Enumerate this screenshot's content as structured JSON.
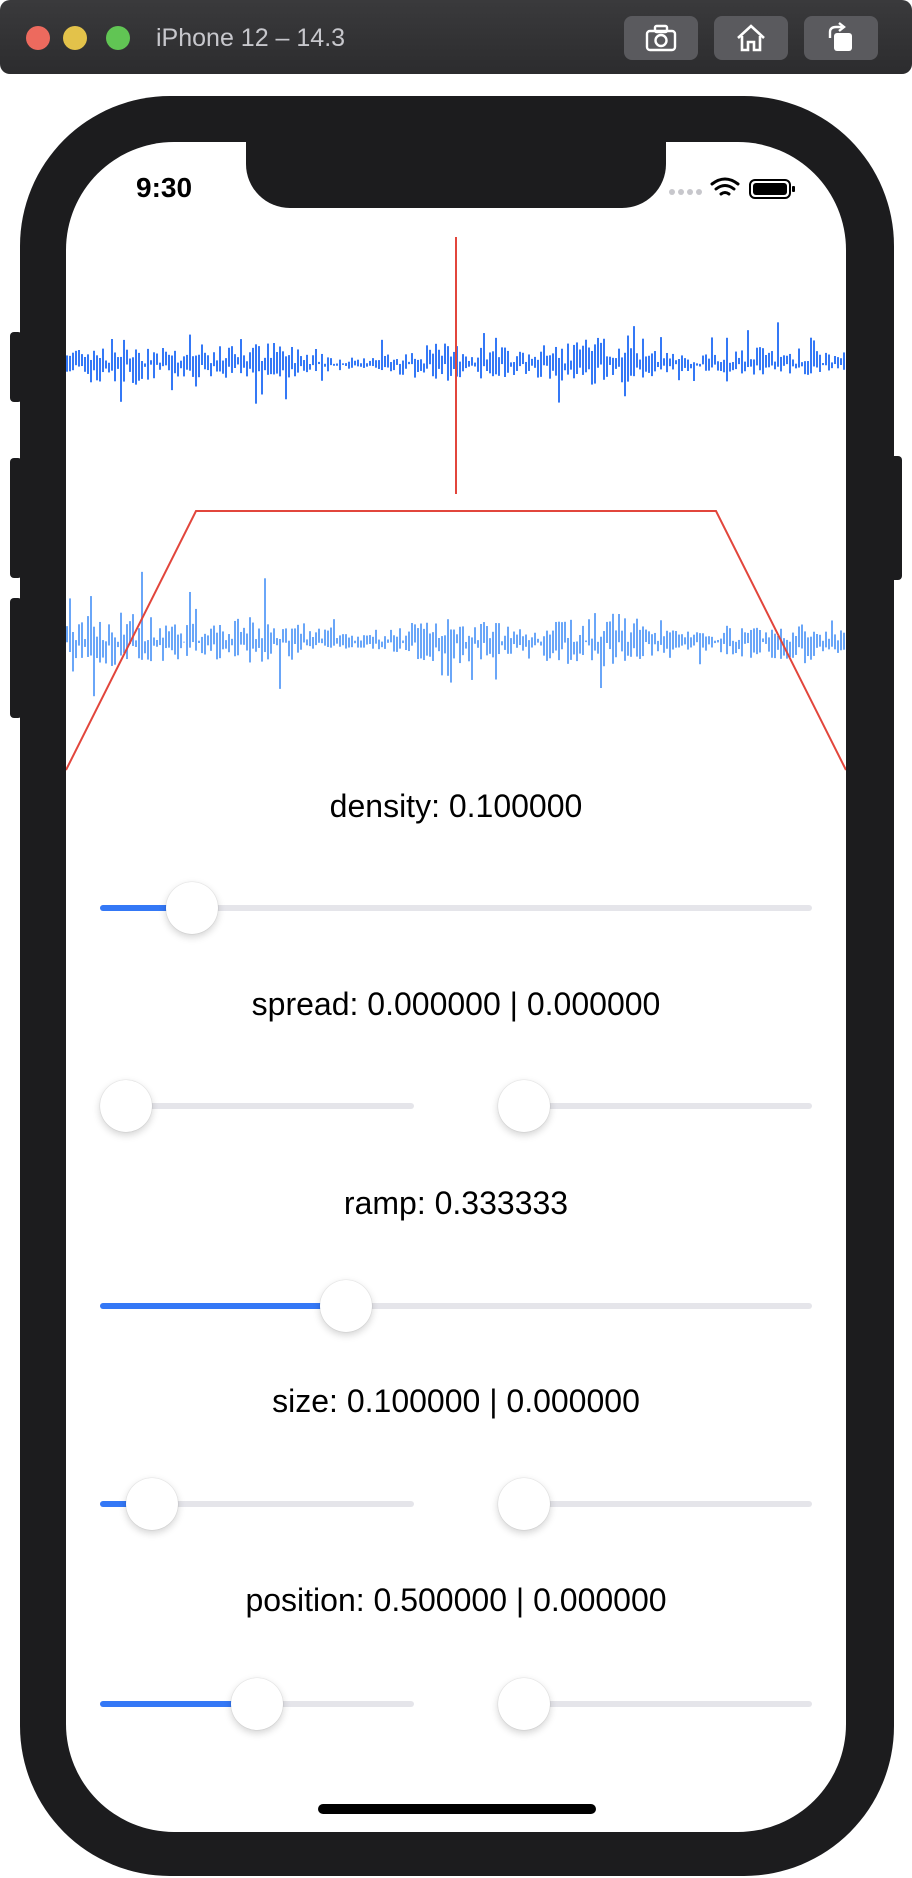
{
  "window": {
    "title": "iPhone 12 – 14.3"
  },
  "colors": {
    "accent": "#3478f6",
    "track": "#e5e5ea",
    "marker": "#e2463c",
    "wave_top": "#3478f6",
    "wave_bottom": "#6aa6f8"
  },
  "status_bar": {
    "time": "9:30"
  },
  "controls": [
    {
      "key": "density",
      "label": "density: 0.100000",
      "sliders": [
        {
          "value": 0.1
        }
      ]
    },
    {
      "key": "spread",
      "label": "spread: 0.000000 | 0.000000",
      "sliders": [
        {
          "value": 0.0
        },
        {
          "value": 0.0
        }
      ]
    },
    {
      "key": "ramp",
      "label": "ramp: 0.333333",
      "sliders": [
        {
          "value": 0.333333
        }
      ]
    },
    {
      "key": "size",
      "label": "size: 0.100000 | 0.000000",
      "sliders": [
        {
          "value": 0.1
        },
        {
          "value": 0.0
        }
      ]
    },
    {
      "key": "position",
      "label": "position: 0.500000 | 0.000000",
      "sliders": [
        {
          "value": 0.5
        },
        {
          "value": 0.0
        }
      ]
    }
  ]
}
